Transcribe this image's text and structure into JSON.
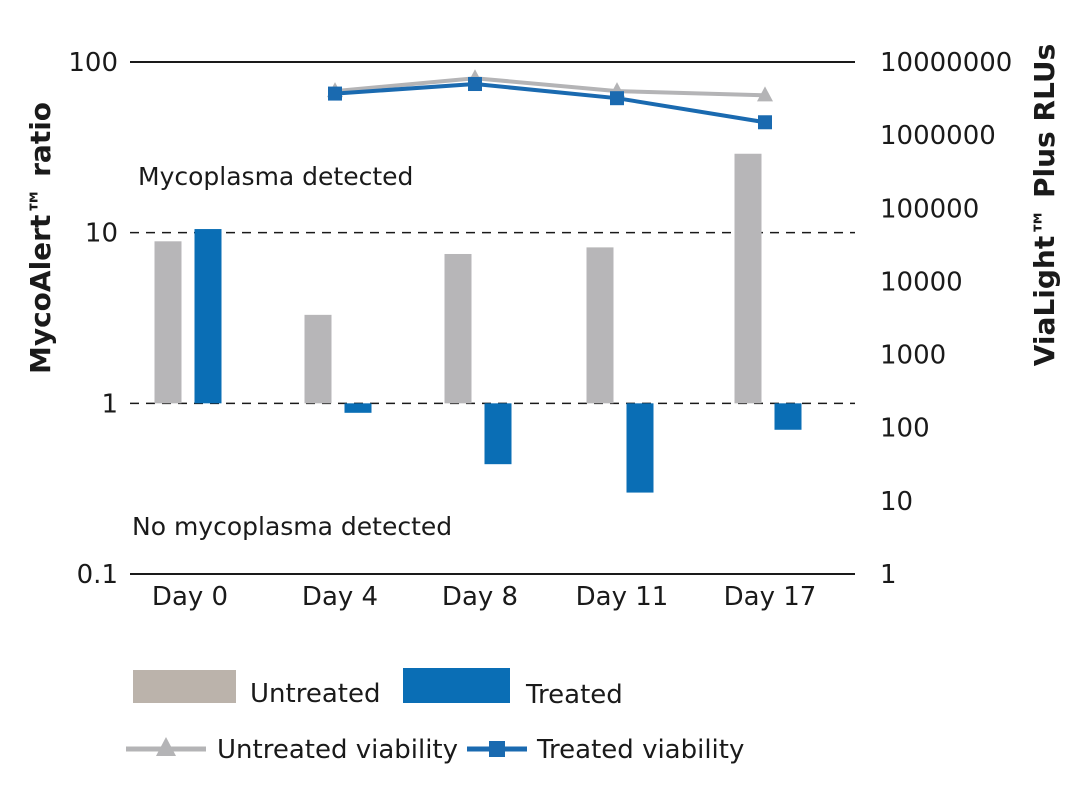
{
  "chart_data": {
    "type": "bar",
    "categories": [
      "Day 0",
      "Day 4",
      "Day 8",
      "Day 11",
      "Day 17"
    ],
    "left_axis": {
      "label": "MycoAlert™ ratio",
      "scale": "log",
      "ylim": [
        0.1,
        100
      ],
      "ticks": [
        "0.1",
        "1",
        "10",
        "100"
      ]
    },
    "right_axis": {
      "label": "ViaLight™ Plus RLUs",
      "scale": "log",
      "ylim": [
        1,
        10000000
      ],
      "ticks": [
        "1",
        "10",
        "100",
        "1000",
        "10000",
        "100000",
        "1000000",
        "10000000"
      ]
    },
    "bar_series": [
      {
        "name": "Untreated",
        "color": "#b7b6b8",
        "values": [
          8.9,
          3.3,
          7.5,
          8.2,
          29
        ]
      },
      {
        "name": "Treated",
        "color": "#0a6eb5",
        "values": [
          10.5,
          0.88,
          0.44,
          0.3,
          0.7
        ]
      }
    ],
    "line_series": [
      {
        "name": "Untreated viability",
        "color": "#b4b4b6",
        "marker": "triangle",
        "axis": "right",
        "values": [
          null,
          4000000,
          6000000,
          4000000,
          3500000
        ]
      },
      {
        "name": "Treated viability",
        "color": "#1a6ab0",
        "marker": "square",
        "axis": "right",
        "values": [
          null,
          3700000,
          5000000,
          3200000,
          1500000
        ]
      }
    ],
    "reference_lines": [
      {
        "axis": "left",
        "value": 10,
        "style": "dashed"
      },
      {
        "axis": "left",
        "value": 1,
        "style": "dashed"
      }
    ],
    "annotations": [
      "Mycoplasma detected",
      "No mycoplasma detected"
    ],
    "legend_position": "bottom",
    "grid": false
  },
  "legend": {
    "untreated": "Untreated",
    "treated": "Treated",
    "untreated_viability": "Untreated viability",
    "treated_viability": "Treated viability"
  }
}
